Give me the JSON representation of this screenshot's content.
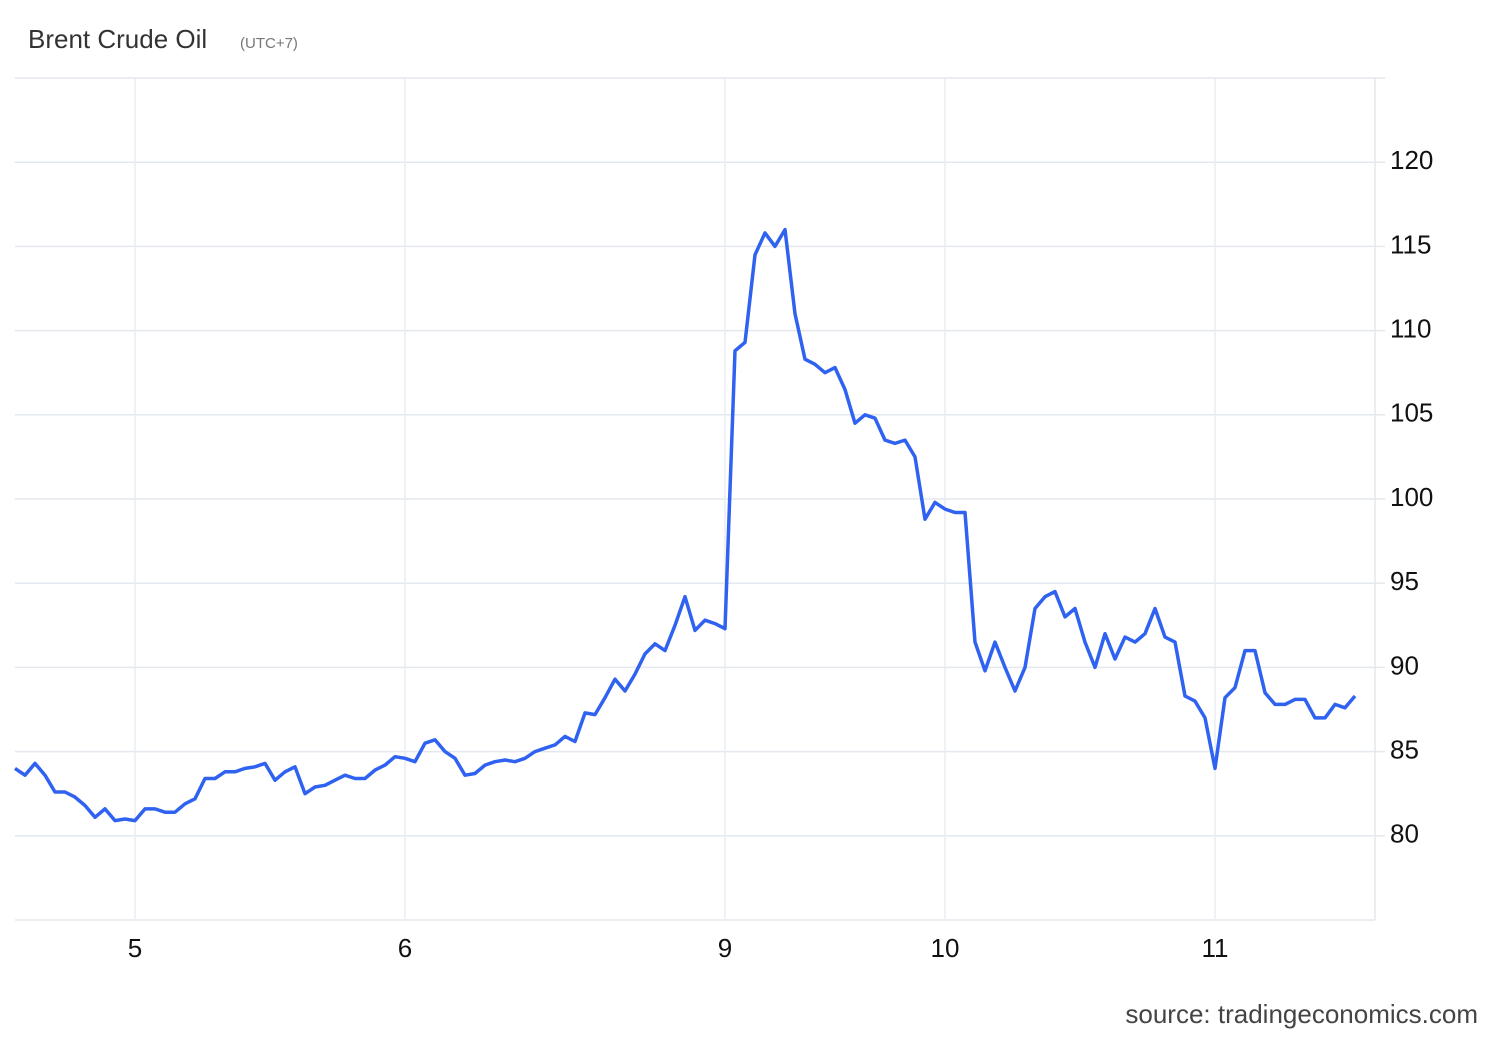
{
  "chart_data": {
    "type": "line",
    "title": "Brent Crude Oil",
    "subtitle": "(UTC+7)",
    "source": "source: tradingeconomics.com",
    "color": "#2f62f0",
    "grid": true,
    "ylim": [
      75,
      125
    ],
    "yticks": [
      80,
      85,
      90,
      95,
      100,
      105,
      110,
      115,
      120
    ],
    "categories": [
      null,
      null,
      null,
      null,
      null,
      null,
      null,
      null,
      null,
      null,
      null,
      null,
      "5",
      null,
      null,
      null,
      null,
      null,
      null,
      null,
      null,
      null,
      null,
      null,
      null,
      null,
      null,
      null,
      null,
      null,
      null,
      null,
      null,
      null,
      null,
      null,
      null,
      null,
      null,
      "6",
      null,
      null,
      null,
      null,
      null,
      null,
      null,
      null,
      null,
      null,
      null,
      null,
      null,
      null,
      null,
      null,
      null,
      null,
      null,
      null,
      null,
      null,
      null,
      null,
      null,
      null,
      null,
      null,
      null,
      null,
      null,
      "9",
      null,
      null,
      null,
      null,
      null,
      null,
      null,
      null,
      null,
      null,
      null,
      null,
      null,
      null,
      null,
      null,
      null,
      null,
      null,
      null,
      null,
      "10",
      null,
      null,
      null,
      null,
      null,
      null,
      null,
      null,
      null,
      null,
      null,
      null,
      null,
      null,
      null,
      null,
      null,
      null,
      null,
      null,
      null,
      null,
      null,
      null,
      null,
      null,
      "11",
      null,
      null,
      null,
      null,
      null,
      null,
      null,
      null,
      null,
      null,
      null,
      null,
      null,
      null
    ],
    "values": [
      84.0,
      83.6,
      84.3,
      83.6,
      82.6,
      82.6,
      82.3,
      81.8,
      81.1,
      81.6,
      80.9,
      81.0,
      80.9,
      81.6,
      81.6,
      81.4,
      81.4,
      81.9,
      82.2,
      83.4,
      83.4,
      83.8,
      83.8,
      84.0,
      84.1,
      84.3,
      83.3,
      83.8,
      84.1,
      82.5,
      82.9,
      83.0,
      83.3,
      83.6,
      83.4,
      83.4,
      83.9,
      84.2,
      84.7,
      84.6,
      84.4,
      85.5,
      85.7,
      85.0,
      84.6,
      83.6,
      83.7,
      84.2,
      84.4,
      84.5,
      84.4,
      84.6,
      85.0,
      85.2,
      85.4,
      85.9,
      85.6,
      87.3,
      87.2,
      88.2,
      89.3,
      88.6,
      89.6,
      90.8,
      91.4,
      91.0,
      92.5,
      94.2,
      92.2,
      92.8,
      92.6,
      92.3,
      108.8,
      109.3,
      114.5,
      115.8,
      115.0,
      116.0,
      111.0,
      108.3,
      108.0,
      107.5,
      107.8,
      106.5,
      104.5,
      105.0,
      104.8,
      103.5,
      103.3,
      103.5,
      102.5,
      98.8,
      99.8,
      99.4,
      99.2,
      99.2,
      91.5,
      89.8,
      91.5,
      90.0,
      88.6,
      90.0,
      93.5,
      94.2,
      94.5,
      93.0,
      93.5,
      91.5,
      90.0,
      92.0,
      90.5,
      91.8,
      91.5,
      92.0,
      93.5,
      91.8,
      91.5,
      88.3,
      88.0,
      87.0,
      84.0,
      88.2,
      88.8,
      91.0,
      91.0,
      88.5,
      87.8,
      87.8,
      88.1,
      88.1,
      87.0,
      87.0,
      87.8,
      87.6,
      88.3
    ]
  }
}
